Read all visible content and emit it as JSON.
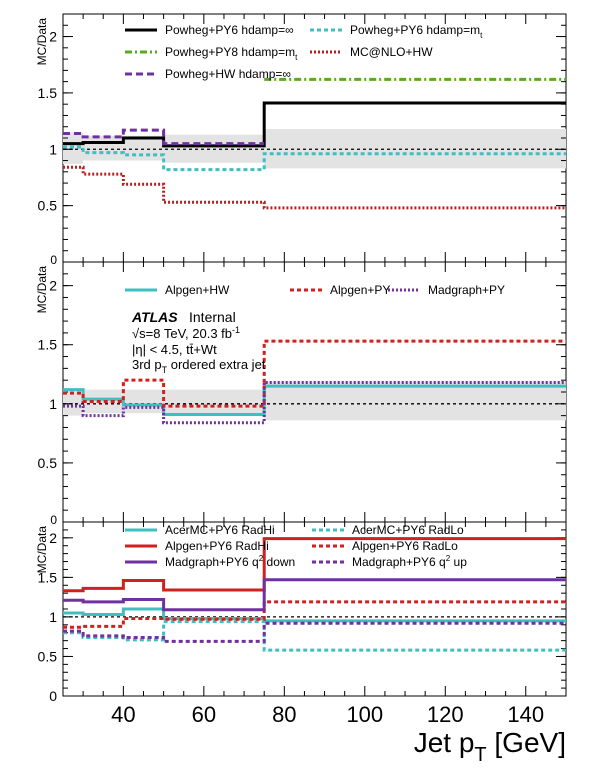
{
  "x_axis": {
    "label": "Jet p",
    "label_sub": "T",
    "label_unit": " [GeV]",
    "range": [
      25,
      150
    ],
    "ticks": [
      "40",
      "60",
      "80",
      "100",
      "120",
      "140"
    ],
    "tick_values": [
      40,
      60,
      80,
      100,
      120,
      140
    ]
  },
  "bin_edges": [
    25,
    30,
    40,
    50,
    75,
    150
  ],
  "atlas_label": {
    "atlas": "ATLAS",
    "status": "Internal",
    "lines": [
      {
        "text": "√s=8 TeV, 20.3 fb",
        "sup": "-1"
      },
      {
        "text": "|η| < 4.5, tt̄+Wt",
        "sup": ""
      },
      {
        "text": "3rd p",
        "sub": "T",
        "rest": " ordered extra jet"
      }
    ]
  },
  "chart_data": [
    {
      "type": "line",
      "ylabel": "MC/Data",
      "ylim": [
        0,
        2.2
      ],
      "yticks": [
        "0",
        "0.5",
        "1",
        "1.5",
        "2"
      ],
      "ytick_values": [
        0,
        0.5,
        1,
        1.5,
        2
      ],
      "uncertainty_band": [
        0.87,
        0.9,
        0.9,
        0.88,
        0.83,
        0.83,
        1.15,
        1.12,
        1.12,
        1.13,
        1.18,
        1.18
      ],
      "series": [
        {
          "name": "Powheg+PY6 hdamp=∞",
          "color": "#000000",
          "dash": "solid",
          "values": [
            1.05,
            1.06,
            1.1,
            1.03,
            1.41
          ]
        },
        {
          "name": "Powheg+PY6 hdamp=m",
          "name_sub": "t",
          "color": "#3fbfc0",
          "dash": "dotted",
          "values": [
            1.02,
            0.97,
            0.95,
            0.82,
            0.96
          ]
        },
        {
          "name": "Powheg+PY8 hdamp=m",
          "name_sub": "t",
          "color": "#5aaa1e",
          "dash": "dashdot",
          "values": [
            null,
            null,
            null,
            null,
            1.62
          ]
        },
        {
          "name": "MC@NLO+HW",
          "color": "#b52020",
          "dash": "densedot",
          "values": [
            0.84,
            0.78,
            0.69,
            0.53,
            0.48
          ]
        },
        {
          "name": "Powheg+HW hdamp=∞",
          "color": "#7030a0",
          "dash": "dashed",
          "values": [
            1.14,
            1.11,
            1.17,
            1.05,
            null
          ]
        }
      ]
    },
    {
      "type": "line",
      "ylabel": "MC/Data",
      "ylim": [
        0,
        2.2
      ],
      "yticks": [
        "0",
        "0.5",
        "1",
        "1.5",
        "2"
      ],
      "ytick_values": [
        0,
        0.5,
        1,
        1.5,
        2
      ],
      "uncertainty_band": [
        0.9,
        0.92,
        0.92,
        0.9,
        0.86,
        0.86,
        1.13,
        1.12,
        1.12,
        1.12,
        1.19,
        1.19
      ],
      "series": [
        {
          "name": "Alpgen+HW",
          "color": "#3fbfc0",
          "dash": "solid",
          "values": [
            1.12,
            1.04,
            0.99,
            0.91,
            1.15
          ]
        },
        {
          "name": "Alpgen+PY",
          "color": "#d02020",
          "dash": "dotted",
          "values": [
            1.09,
            1.02,
            1.2,
            0.98,
            1.53
          ]
        },
        {
          "name": "Madgraph+PY",
          "color": "#7030a0",
          "dash": "densedot",
          "values": [
            0.98,
            0.9,
            0.97,
            0.84,
            1.18
          ]
        }
      ]
    },
    {
      "type": "line",
      "ylabel": "MC/Data",
      "ylim": [
        0,
        2.2
      ],
      "yticks": [
        "0",
        "0.5",
        "1",
        "1.5",
        "2"
      ],
      "ytick_values": [
        0,
        0.5,
        1,
        1.5,
        2
      ],
      "uncertainty_band": [],
      "series": [
        {
          "name": "AcerMC+PY6 RadHi",
          "color": "#3fbfc0",
          "dash": "solid",
          "values": [
            1.05,
            1.03,
            1.1,
            0.98,
            0.95
          ]
        },
        {
          "name": "AcerMC+PY6 RadLo",
          "color": "#3fbfc0",
          "dash": "dotted",
          "values": [
            0.8,
            0.74,
            0.71,
            0.94,
            0.58
          ]
        },
        {
          "name": "Alpgen+PY6 RadHi",
          "color": "#d02020",
          "dash": "solid",
          "values": [
            1.33,
            1.36,
            1.46,
            1.34,
            1.99
          ]
        },
        {
          "name": "Alpgen+PY6 RadLo",
          "color": "#d02020",
          "dash": "dotted",
          "values": [
            0.87,
            0.88,
            0.98,
            0.97,
            1.19
          ]
        },
        {
          "name": "Madgraph+PY6 q",
          "name_sup": "2",
          "name_rest": " down",
          "color": "#7030a0",
          "dash": "solid",
          "values": [
            1.21,
            1.19,
            1.22,
            1.09,
            1.47
          ]
        },
        {
          "name": "Madgraph+PY6 q",
          "name_sup": "2",
          "name_rest": " up",
          "color": "#7030a0",
          "dash": "dotted",
          "values": [
            0.82,
            0.76,
            0.74,
            0.69,
            0.92
          ]
        }
      ]
    }
  ]
}
